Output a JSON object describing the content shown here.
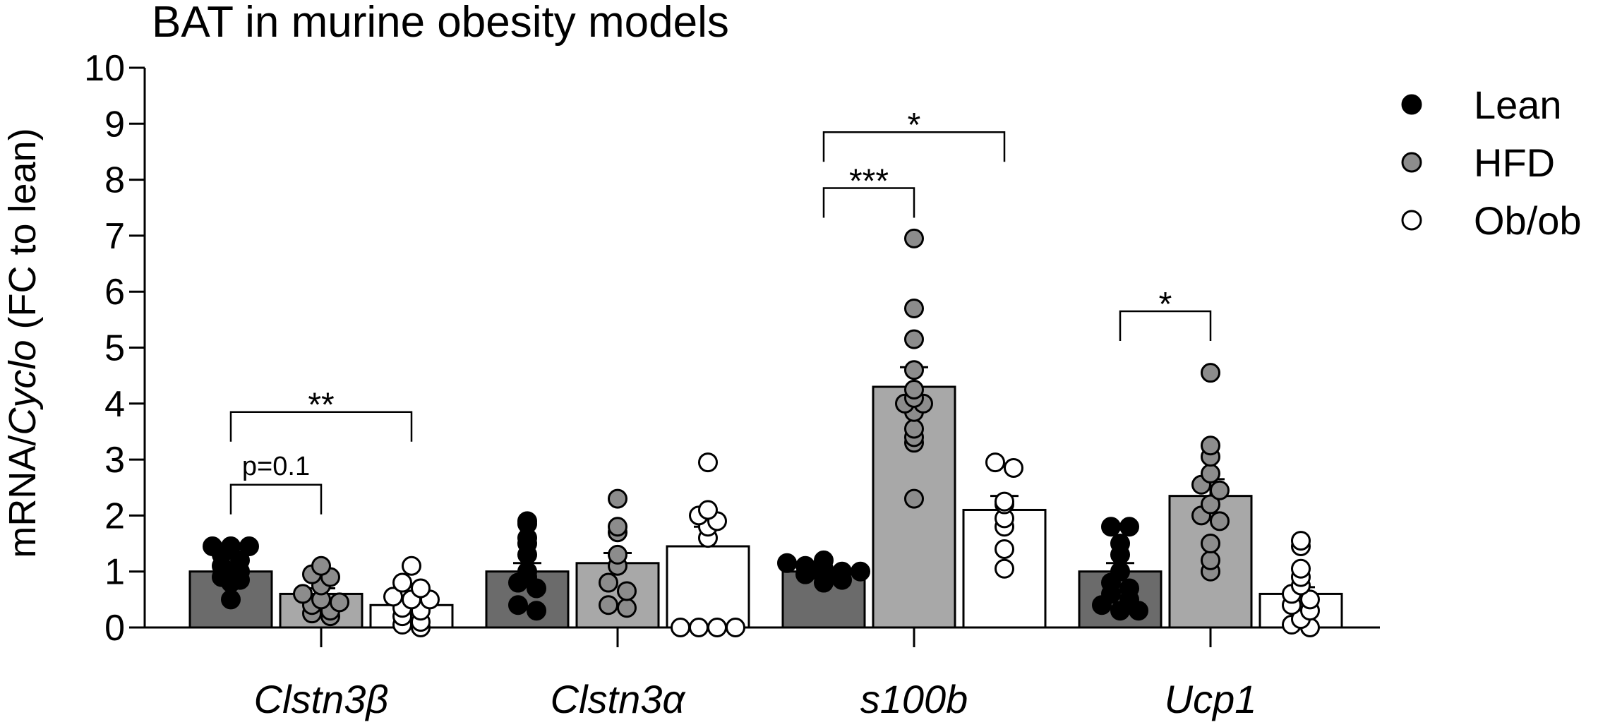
{
  "chart_data": {
    "type": "bar",
    "title": "BAT in murine obesity models",
    "ylabel_prefix": "mRNA/",
    "ylabel_italic": "Cyclo",
    "ylabel_suffix": " (FC to lean)",
    "ylim": [
      0,
      10
    ],
    "yticks": [
      "0",
      "1",
      "2",
      "3",
      "4",
      "5",
      "6",
      "7",
      "8",
      "9",
      "10"
    ],
    "categories": [
      "Clstn3β",
      "Clstn3α",
      "s100b",
      "Ucp1"
    ],
    "series": [
      {
        "name": "Lean",
        "bar_color": "#6b6b6b",
        "dot_color": "#000000",
        "values": [
          1.0,
          1.0,
          1.0,
          1.0
        ],
        "sem": [
          0.12,
          0.15,
          0.06,
          0.15
        ],
        "points": [
          [
            1.45,
            1.45,
            1.45,
            1.3,
            1.2,
            1.1,
            1.0,
            0.9,
            0.85,
            0.8,
            0.5
          ],
          [
            1.9,
            1.85,
            1.6,
            1.5,
            1.3,
            1.0,
            0.9,
            0.8,
            0.7,
            0.4,
            0.3
          ],
          [
            1.2,
            1.15,
            1.1,
            1.05,
            1.0,
            1.0,
            0.95,
            0.9,
            0.85,
            0.8
          ],
          [
            1.8,
            1.8,
            1.5,
            1.3,
            1.0,
            0.8,
            0.7,
            0.6,
            0.5,
            0.4,
            0.3,
            0.3
          ]
        ]
      },
      {
        "name": "HFD",
        "bar_color": "#a8a8a8",
        "dot_color": "#8c8c8c",
        "values": [
          0.6,
          1.15,
          4.3,
          2.35
        ],
        "sem": [
          0.1,
          0.18,
          0.35,
          0.3
        ],
        "points": [
          [
            1.1,
            0.95,
            0.9,
            0.75,
            0.6,
            0.5,
            0.45,
            0.4,
            0.3,
            0.25,
            0.2
          ],
          [
            2.3,
            1.8,
            1.7,
            1.3,
            1.1,
            0.8,
            0.65,
            0.4,
            0.35
          ],
          [
            6.95,
            5.7,
            5.15,
            4.6,
            4.25,
            4.1,
            4.0,
            4.0,
            3.85,
            3.55,
            3.4,
            3.3,
            2.3
          ],
          [
            4.55,
            3.25,
            3.05,
            2.75,
            2.55,
            2.45,
            2.2,
            2.0,
            1.9,
            1.5,
            1.2,
            1.0
          ]
        ]
      },
      {
        "name": "Ob/ob",
        "bar_color": "#ffffff",
        "dot_color": "#ffffff",
        "values": [
          0.4,
          1.45,
          2.1,
          0.6
        ],
        "sem": [
          0.08,
          0.35,
          0.25,
          0.12
        ],
        "points": [
          [
            1.1,
            0.8,
            0.7,
            0.55,
            0.5,
            0.5,
            0.35,
            0.3,
            0.2,
            0.1,
            0.05,
            0.0
          ],
          [
            2.95,
            2.1,
            2.0,
            1.9,
            1.8,
            1.6,
            0.0,
            0.0,
            0.0,
            0.0
          ],
          [
            2.95,
            2.85,
            2.25,
            2.2,
            1.95,
            1.8,
            1.4,
            1.05
          ],
          [
            1.55,
            1.45,
            1.05,
            0.9,
            0.75,
            0.6,
            0.5,
            0.4,
            0.3,
            0.15,
            0.05,
            0.0
          ]
        ]
      }
    ],
    "legend": {
      "position": "right",
      "entries": [
        "Lean",
        "HFD",
        "Ob/ob"
      ]
    },
    "annotations": [
      {
        "category": 0,
        "from": 0,
        "to": 1,
        "y": 2.55,
        "label": "p=0.1",
        "kind": "text"
      },
      {
        "category": 0,
        "from": 0,
        "to": 2,
        "y": 3.85,
        "label": "**",
        "kind": "stars"
      },
      {
        "category": 2,
        "from": 0,
        "to": 1,
        "y": 7.85,
        "label": "***",
        "kind": "stars"
      },
      {
        "category": 2,
        "from": 0,
        "to": 2,
        "y": 8.85,
        "label": "*",
        "kind": "stars"
      },
      {
        "category": 3,
        "from": 0,
        "to": 1,
        "y": 5.65,
        "label": "*",
        "kind": "stars"
      }
    ]
  }
}
